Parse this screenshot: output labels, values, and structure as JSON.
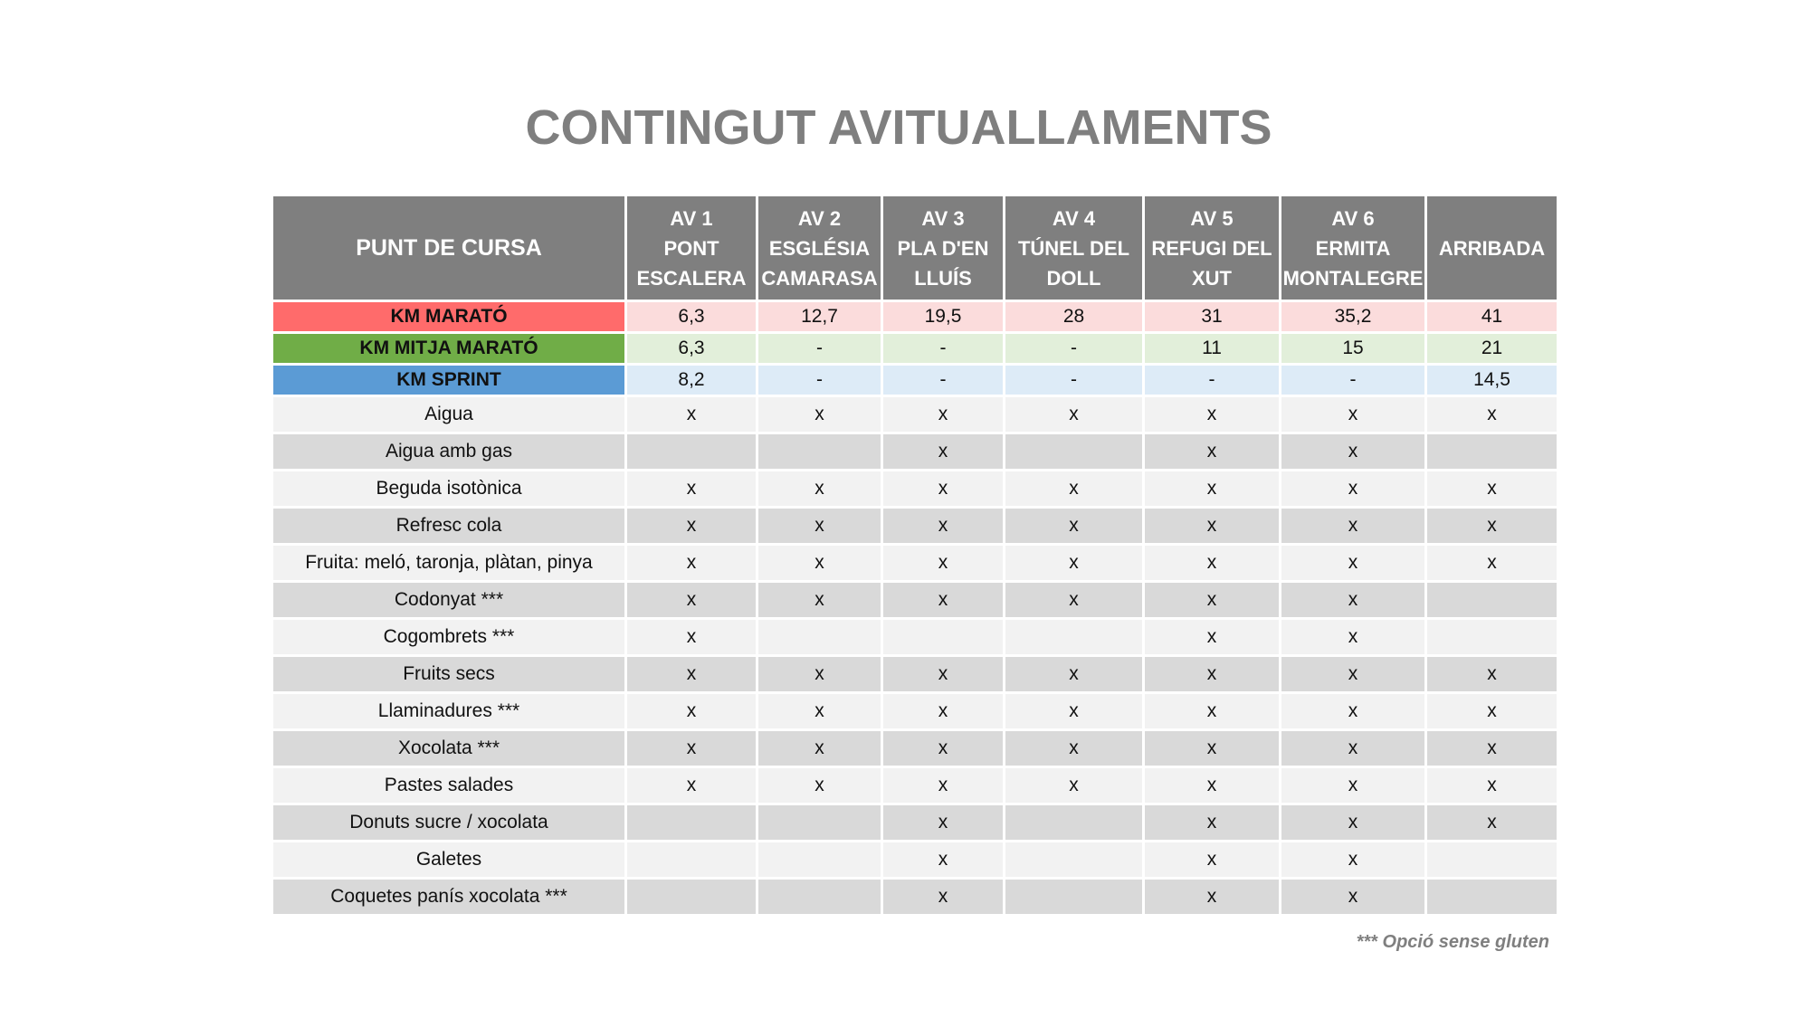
{
  "title": "CONTINGUT AVITUALLAMENTS",
  "header": {
    "first": "PUNT DE CURSA",
    "columns": [
      [
        "AV 1",
        "PONT",
        "ESCALERA"
      ],
      [
        "AV 2",
        "ESGLÉSIA",
        "CAMARASA"
      ],
      [
        "AV 3",
        "PLA D'EN",
        "LLUÍS"
      ],
      [
        "AV 4",
        "TÚNEL DEL",
        "DOLL"
      ],
      [
        "AV 5",
        "REFUGI DEL",
        "XUT"
      ],
      [
        "AV 6",
        "ERMITA",
        "MONTALEGRE"
      ],
      [
        "ARRIBADA"
      ]
    ]
  },
  "km_rows": [
    {
      "label": "KM MARATÓ",
      "color": "#ff6b6b",
      "cell_color": "#fbdcdc",
      "values": [
        "6,3",
        "12,7",
        "19,5",
        "28",
        "31",
        "35,2",
        "41"
      ]
    },
    {
      "label": "KM MITJA MARATÓ",
      "color": "#70ad47",
      "cell_color": "#e2efda",
      "values": [
        "6,3",
        "-",
        "-",
        "-",
        "11",
        "15",
        "21"
      ]
    },
    {
      "label": "KM SPRINT",
      "color": "#5b9bd5",
      "cell_color": "#ddebf7",
      "values": [
        "8,2",
        "-",
        "-",
        "-",
        "-",
        "-",
        "14,5"
      ]
    }
  ],
  "items": [
    {
      "label": "Aigua",
      "marks": [
        "x",
        "x",
        "x",
        "x",
        "x",
        "x",
        "x"
      ]
    },
    {
      "label": "Aigua amb gas",
      "marks": [
        "",
        "",
        "x",
        "",
        "x",
        "x",
        ""
      ]
    },
    {
      "label": "Beguda isotònica",
      "marks": [
        "x",
        "x",
        "x",
        "x",
        "x",
        "x",
        "x"
      ]
    },
    {
      "label": "Refresc cola",
      "marks": [
        "x",
        "x",
        "x",
        "x",
        "x",
        "x",
        "x"
      ]
    },
    {
      "label": "Fruita: meló, taronja, plàtan, pinya",
      "marks": [
        "x",
        "x",
        "x",
        "x",
        "x",
        "x",
        "x"
      ]
    },
    {
      "label": "Codonyat ***",
      "marks": [
        "x",
        "x",
        "x",
        "x",
        "x",
        "x",
        ""
      ]
    },
    {
      "label": "Cogombrets ***",
      "marks": [
        "x",
        "",
        "",
        "",
        "x",
        "x",
        ""
      ]
    },
    {
      "label": "Fruits secs",
      "marks": [
        "x",
        "x",
        "x",
        "x",
        "x",
        "x",
        "x"
      ]
    },
    {
      "label": "Llaminadures ***",
      "marks": [
        "x",
        "x",
        "x",
        "x",
        "x",
        "x",
        "x"
      ]
    },
    {
      "label": "Xocolata ***",
      "marks": [
        "x",
        "x",
        "x",
        "x",
        "x",
        "x",
        "x"
      ]
    },
    {
      "label": "Pastes salades",
      "marks": [
        "x",
        "x",
        "x",
        "x",
        "x",
        "x",
        "x"
      ]
    },
    {
      "label": "Donuts sucre / xocolata",
      "marks": [
        "",
        "",
        "x",
        "",
        "x",
        "x",
        "x"
      ]
    },
    {
      "label": "Galetes",
      "marks": [
        "",
        "",
        "x",
        "",
        "x",
        "x",
        ""
      ]
    },
    {
      "label": "Coquetes panís xocolata ***",
      "marks": [
        "",
        "",
        "x",
        "",
        "x",
        "x",
        ""
      ]
    }
  ],
  "footnote": "*** Opció sense gluten"
}
